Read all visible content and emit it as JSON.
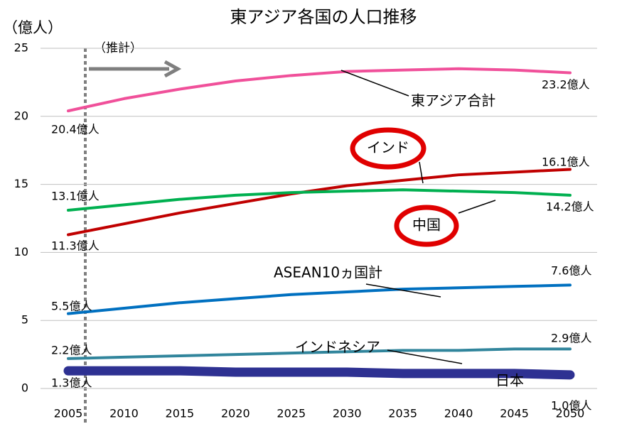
{
  "chart_data": {
    "type": "line",
    "title": "東アジア各国の人口推移",
    "y_label": "（億人）",
    "annotation": "（推計）",
    "categories": [
      "2005",
      "2010",
      "2015",
      "2020",
      "2025",
      "2030",
      "2035",
      "2040",
      "2045",
      "2050"
    ],
    "ylim": [
      0,
      25
    ],
    "yticks": [
      0,
      5,
      10,
      15,
      20,
      25
    ],
    "grid": true,
    "series": [
      {
        "name": "東アジア合計",
        "color": "#f0509a",
        "values": [
          20.4,
          21.3,
          22.0,
          22.6,
          23.0,
          23.3,
          23.4,
          23.5,
          23.4,
          23.2
        ],
        "value_labels": [
          "20.4億人",
          null,
          null,
          null,
          null,
          null,
          null,
          null,
          null,
          "23.2億人"
        ]
      },
      {
        "name": "インド",
        "color": "#c00000",
        "values": [
          11.3,
          12.1,
          12.9,
          13.6,
          14.3,
          14.9,
          15.3,
          15.7,
          15.9,
          16.1
        ],
        "value_labels": [
          "11.3億人",
          null,
          null,
          null,
          null,
          null,
          null,
          null,
          null,
          "16.1億人"
        ]
      },
      {
        "name": "中国",
        "color": "#00b050",
        "values": [
          13.1,
          13.5,
          13.9,
          14.2,
          14.4,
          14.5,
          14.6,
          14.5,
          14.4,
          14.2
        ],
        "value_labels": [
          "13.1億人",
          null,
          null,
          null,
          null,
          null,
          null,
          null,
          null,
          "14.2億人"
        ]
      },
      {
        "name": "ASEAN10ヵ国計",
        "color": "#0070c0",
        "values": [
          5.5,
          5.9,
          6.3,
          6.6,
          6.9,
          7.1,
          7.3,
          7.4,
          7.5,
          7.6
        ],
        "value_labels": [
          "5.5億人",
          null,
          null,
          null,
          null,
          null,
          null,
          null,
          null,
          "7.6億人"
        ]
      },
      {
        "name": "インドネシア",
        "color": "#31859c",
        "values": [
          2.2,
          2.3,
          2.4,
          2.5,
          2.6,
          2.7,
          2.8,
          2.8,
          2.9,
          2.9
        ],
        "value_labels": [
          "2.2億人",
          null,
          null,
          null,
          null,
          null,
          null,
          null,
          null,
          "2.9億人"
        ]
      },
      {
        "name": "日本",
        "color": "#2e3192",
        "values": [
          1.3,
          1.3,
          1.3,
          1.2,
          1.2,
          1.2,
          1.1,
          1.1,
          1.1,
          1.0
        ],
        "value_labels": [
          "1.3億人",
          null,
          null,
          null,
          null,
          null,
          null,
          null,
          null,
          "1.0億人"
        ]
      }
    ]
  }
}
